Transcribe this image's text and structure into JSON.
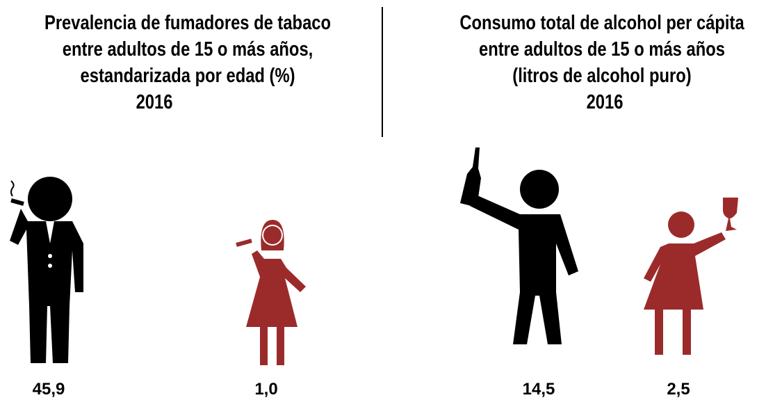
{
  "panels": [
    {
      "title": [
        "Prevalencia de fumadores de tabaco",
        "entre adultos de 15 o más años,",
        "estandarizada por edad (%)"
      ],
      "year": "2016",
      "values": [
        "45,9",
        "1,0"
      ]
    },
    {
      "title": [
        "Consumo total de alcohol per cápita",
        "entre adultos de 15 o más años",
        "(litros de alcohol puro)"
      ],
      "year": "2016",
      "values": [
        "14,5",
        "2,5"
      ]
    }
  ]
}
